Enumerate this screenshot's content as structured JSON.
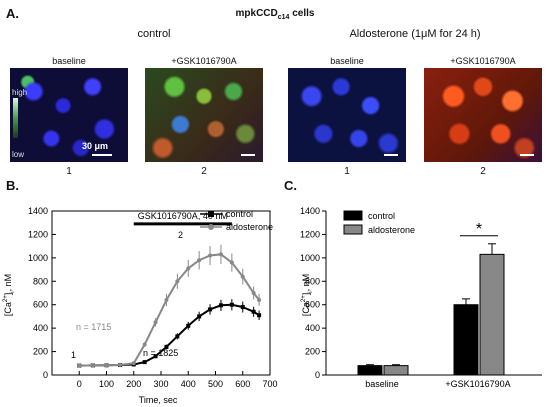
{
  "panelA": {
    "letter": "A.",
    "title_main": "mpkCCD",
    "title_sub": "c14",
    "title_tail": " cells",
    "group_control": "control",
    "group_aldo": "Aldosterone (1μM for 24 h)",
    "images": [
      {
        "label": "baseline",
        "number": "1"
      },
      {
        "label": "+GSK1016790A",
        "number": "2"
      },
      {
        "label": "baseline",
        "number": "1"
      },
      {
        "label": "+GSK1016790A",
        "number": "2"
      }
    ],
    "colorbar_high": "high",
    "colorbar_low": "low",
    "scale_text": "30 μm"
  },
  "panelB": {
    "letter": "B.",
    "drug_label": "GSK1016790A, 40 nM",
    "legend": [
      "control",
      "aldosterone"
    ],
    "n_aldo": "n = 1715",
    "n_control": "n = 1825",
    "mark1": "1",
    "mark2": "2",
    "xlabel": "Time, sec",
    "ylabel_pre": "[Ca",
    "ylabel_sup": "2+",
    "ylabel_post": "]",
    "ylabel_sub": "i",
    "ylabel_unit": ", nM"
  },
  "panelC": {
    "letter": "C.",
    "legend": [
      "control",
      "aldosterone"
    ],
    "sig": "*",
    "ylabel_pre": "[Ca",
    "ylabel_sup": "2+",
    "ylabel_post": "]",
    "ylabel_sub": "i",
    "ylabel_unit": ", nM"
  },
  "colors": {
    "control": "#000000",
    "aldosterone": "#888888"
  },
  "chart_data": [
    {
      "type": "line",
      "xlabel": "Time, sec",
      "ylabel": "[Ca2+]i, nM",
      "xlim": [
        -100,
        700
      ],
      "ylim": [
        0,
        1400
      ],
      "xticks": [
        0,
        100,
        200,
        300,
        400,
        500,
        600,
        700
      ],
      "yticks": [
        0,
        200,
        400,
        600,
        800,
        1000,
        1200,
        1400
      ],
      "x": [
        0,
        50,
        100,
        150,
        200,
        240,
        280,
        320,
        360,
        400,
        440,
        480,
        520,
        560,
        600,
        640,
        660
      ],
      "series": [
        {
          "name": "control",
          "values": [
            80,
            82,
            83,
            85,
            90,
            110,
            160,
            240,
            330,
            420,
            500,
            560,
            595,
            600,
            580,
            540,
            510
          ]
        },
        {
          "name": "aldosterone",
          "values": [
            80,
            82,
            83,
            86,
            100,
            260,
            450,
            640,
            800,
            910,
            980,
            1020,
            1030,
            960,
            840,
            700,
            640
          ]
        }
      ],
      "drug_bar": {
        "start": 200,
        "end": 560,
        "label": "GSK1016790A, 40 nM"
      },
      "legend_position": "top-right"
    },
    {
      "type": "bar",
      "categories": [
        "baseline",
        "+GSK1016790A"
      ],
      "series": [
        {
          "name": "control",
          "values": [
            80,
            600
          ],
          "errors": [
            8,
            50
          ]
        },
        {
          "name": "aldosterone",
          "values": [
            80,
            1030
          ],
          "errors": [
            8,
            90
          ]
        }
      ],
      "ylabel": "[Ca2+]i, nM",
      "ylim": [
        0,
        1400
      ],
      "yticks": [
        0,
        200,
        400,
        600,
        800,
        1000,
        1200,
        1400
      ],
      "legend_position": "top-left",
      "significance": "*"
    }
  ]
}
